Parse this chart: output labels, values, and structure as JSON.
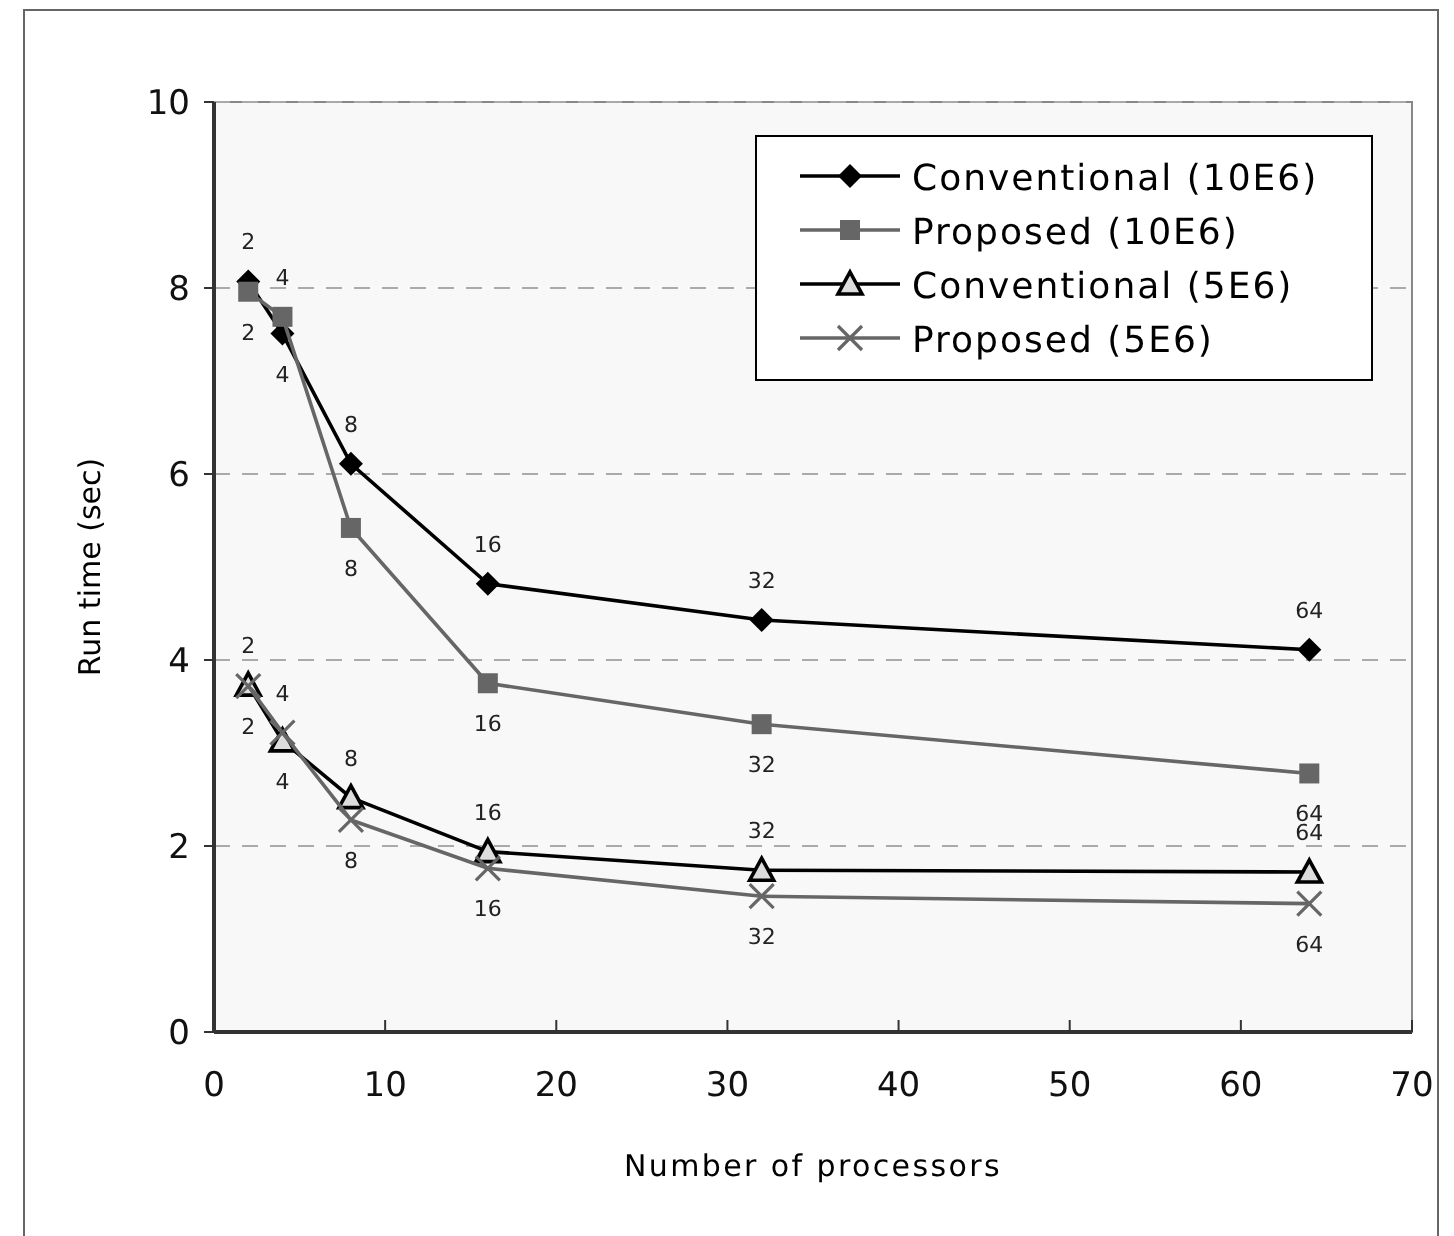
{
  "chart_data": {
    "type": "line",
    "xlabel": "Number of processors",
    "ylabel": "Run time (sec)",
    "x": [
      2,
      4,
      8,
      16,
      32,
      64
    ],
    "xlim": [
      0,
      70
    ],
    "xticks": [
      0,
      10,
      20,
      30,
      40,
      50,
      60,
      70
    ],
    "ylim": [
      0,
      10
    ],
    "yticks": [
      0,
      2,
      4,
      6,
      8,
      10
    ],
    "grid": "y",
    "legend": "top right",
    "series": [
      {
        "name": "Conventional (10E6)",
        "color": "#000000",
        "marker": "diamond",
        "values": [
          8.07,
          7.51,
          6.11,
          4.82,
          4.43,
          4.11
        ]
      },
      {
        "name": "Proposed (10E6)",
        "color": "#666666",
        "marker": "square",
        "values": [
          7.96,
          7.69,
          5.42,
          3.75,
          3.31,
          2.78
        ]
      },
      {
        "name": "Conventional (5E6)",
        "color": "#000000",
        "marker": "triangle",
        "values": [
          3.73,
          3.13,
          2.52,
          1.94,
          1.74,
          1.72
        ]
      },
      {
        "name": "Proposed (5E6)",
        "color": "#666666",
        "marker": "cross",
        "values": [
          3.72,
          3.22,
          2.28,
          1.76,
          1.46,
          1.38
        ]
      }
    ],
    "annotations": [
      {
        "text": "2",
        "x": 2,
        "y": 8.07
      },
      {
        "text": "4",
        "x": 4,
        "y": 7.51
      },
      {
        "text": "8",
        "x": 8,
        "y": 6.11
      },
      {
        "text": "16",
        "x": 16,
        "y": 4.82
      },
      {
        "text": "32",
        "x": 32,
        "y": 4.43
      },
      {
        "text": "64",
        "x": 64,
        "y": 4.11
      },
      {
        "text": "2",
        "x": 2,
        "y": 7.96
      },
      {
        "text": "4",
        "x": 4,
        "y": 7.69
      },
      {
        "text": "8",
        "x": 8,
        "y": 5.42
      },
      {
        "text": "16",
        "x": 16,
        "y": 3.75
      },
      {
        "text": "32",
        "x": 32,
        "y": 3.31
      },
      {
        "text": "64",
        "x": 64,
        "y": 2.78
      },
      {
        "text": "2",
        "x": 2,
        "y": 3.73
      },
      {
        "text": "4",
        "x": 4,
        "y": 3.13
      },
      {
        "text": "8",
        "x": 8,
        "y": 2.52
      },
      {
        "text": "16",
        "x": 16,
        "y": 1.94
      },
      {
        "text": "32",
        "x": 32,
        "y": 1.74
      },
      {
        "text": "64",
        "x": 64,
        "y": 1.72
      },
      {
        "text": "2",
        "x": 2,
        "y": 3.72
      },
      {
        "text": "4",
        "x": 4,
        "y": 3.22
      },
      {
        "text": "8",
        "x": 8,
        "y": 2.28
      },
      {
        "text": "16",
        "x": 16,
        "y": 1.76
      },
      {
        "text": "32",
        "x": 32,
        "y": 1.46
      },
      {
        "text": "64",
        "x": 64,
        "y": 1.38
      }
    ]
  }
}
